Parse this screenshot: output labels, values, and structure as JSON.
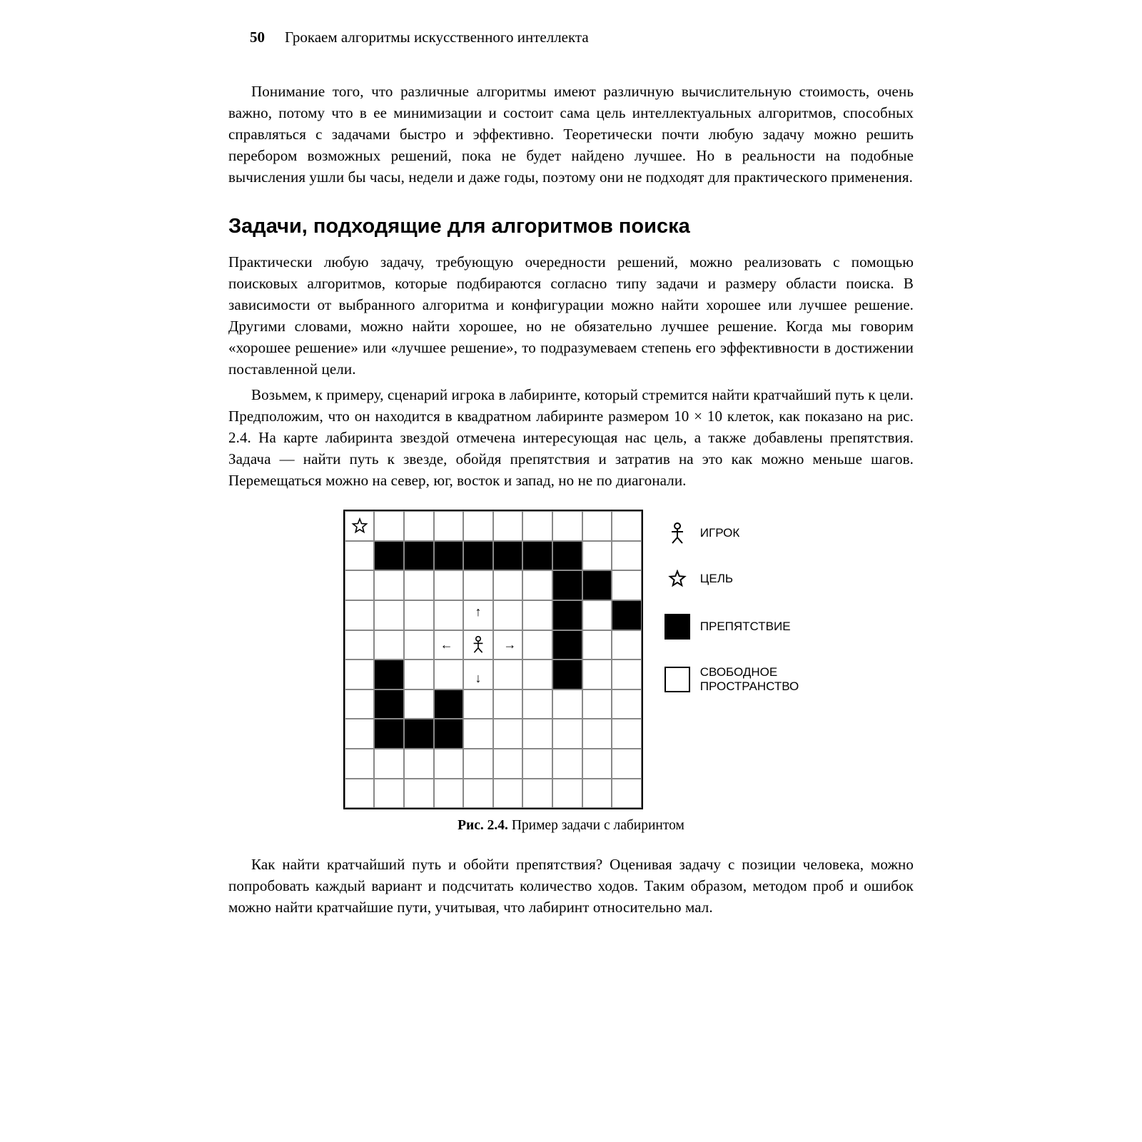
{
  "header": {
    "page_number": "50",
    "running_title": "Грокаем алгоритмы искусственного интеллекта"
  },
  "paragraphs": {
    "p1": "Понимание того, что различные алгоритмы имеют различную вычислительную стоимость, очень важно, потому что в ее минимизации и состоит сама цель интеллектуальных алгоритмов, способных справляться с задачами быстро и эффективно. Теоретически почти любую задачу можно решить перебором возможных решений, пока не будет найдено лучшее. Но в реальности на подобные вычисления ушли бы часы, недели и даже годы, поэтому они не подходят для практического применения.",
    "heading": "Задачи, подходящие для алгоритмов поиска",
    "p2": "Практически любую задачу, требующую очередности решений, можно реализовать с помощью поисковых алгоритмов, которые подбираются согласно типу задачи и размеру области поиска. В зависимости от выбранного алгоритма и конфигурации можно найти хорошее или лучшее решение. Другими словами, можно найти хорошее, но не обязательно лучшее решение. Когда мы говорим «хорошее решение» или «лучшее решение», то подразумеваем степень его эффективности в достижении поставленной цели.",
    "p3": "Возьмем, к примеру, сценарий игрока в лабиринте, который стремится найти кратчайший путь к цели. Предположим, что он находится в квадратном лабиринте размером 10 × 10 клеток, как показано на рис. 2.4. На карте лабиринта звездой отмечена интересующая нас цель, а также добавлены препятствия. Задача — найти путь к звезде, обойдя препятствия и затратив на это как можно меньше шагов. Перемещаться можно на север, юг, восток и запад, но не по диагонали.",
    "p4": "Как найти кратчайший путь и обойти препятствия? Оценивая задачу с позиции человека, можно попробовать каждый вариант и подсчитать количество ходов. Таким образом, методом проб и ошибок можно найти кратчайшие пути, учитывая, что лабиринт относительно мал."
  },
  "figure": {
    "maze": {
      "type": "grid",
      "rows": 10,
      "cols": 10,
      "cell_border_color": "#888888",
      "outer_border_color": "#000000",
      "blocked_color": "#000000",
      "free_color": "#ffffff",
      "blocked_cells": [
        [
          1,
          1
        ],
        [
          1,
          2
        ],
        [
          1,
          3
        ],
        [
          1,
          4
        ],
        [
          1,
          5
        ],
        [
          1,
          6
        ],
        [
          1,
          7
        ],
        [
          2,
          7
        ],
        [
          2,
          8
        ],
        [
          3,
          7
        ],
        [
          3,
          9
        ],
        [
          4,
          7
        ],
        [
          5,
          1
        ],
        [
          5,
          7
        ],
        [
          6,
          1
        ],
        [
          6,
          3
        ],
        [
          7,
          1
        ],
        [
          7,
          2
        ],
        [
          7,
          3
        ]
      ],
      "goal_cell": [
        0,
        0
      ],
      "player_cell": [
        4,
        4
      ]
    },
    "legend": {
      "player": "ИГРОК",
      "goal": "ЦЕЛЬ",
      "obstacle": "ПРЕПЯТСТВИЕ",
      "free_line1": "СВОБОДНОЕ",
      "free_line2": "ПРОСТРАНСТВО"
    },
    "caption_bold": "Рис. 2.4.",
    "caption_rest": " Пример задачи с лабиринтом"
  }
}
